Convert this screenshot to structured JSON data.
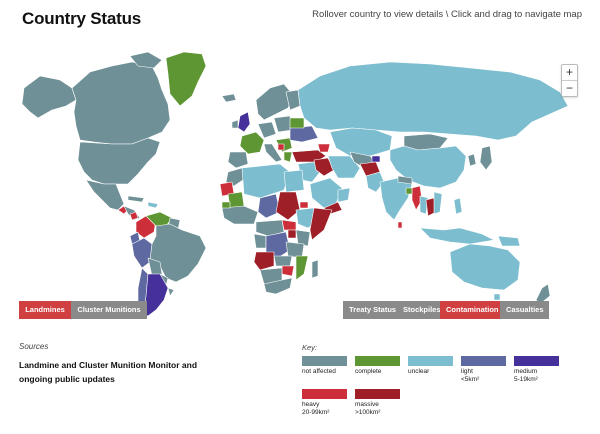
{
  "header": {
    "title": "Country Status",
    "hint": "Rollover country to view details \\ Click and drag to navigate map"
  },
  "zoom": {
    "in_label": "+",
    "out_label": "−"
  },
  "colors": {
    "not_affected": "#6f9096",
    "complete": "#5d9632",
    "unclear": "#7cbdcf",
    "light": "#5e69a1",
    "medium": "#46309a",
    "heavy": "#cc2f3a",
    "massive": "#9e1f27",
    "tab_active": "#d04040",
    "tab_inactive": "#8a8a8a"
  },
  "left_tabs": [
    {
      "label": "Landmines",
      "active": true
    },
    {
      "label": "Cluster Munitions",
      "active": false
    }
  ],
  "right_tabs": [
    {
      "label": "Treaty Status",
      "active": false
    },
    {
      "label": "Stockpiles",
      "active": false
    },
    {
      "label": "Contamination",
      "active": true
    },
    {
      "label": "Casualties",
      "active": false
    }
  ],
  "sources": {
    "label": "Sources",
    "text": "Landmine and Cluster Munition Monitor and ongoing public updates"
  },
  "key": {
    "label": "Key:",
    "items": [
      {
        "line1": "not affected",
        "line2": "",
        "color": "#6f9096"
      },
      {
        "line1": "complete",
        "line2": "",
        "color": "#5d9632"
      },
      {
        "line1": "unclear",
        "line2": "",
        "color": "#7cbdcf"
      },
      {
        "line1": "light",
        "line2": "<5km²",
        "color": "#5e69a1"
      },
      {
        "line1": "medium",
        "line2": "5-19km²",
        "color": "#46309a"
      },
      {
        "line1": "heavy",
        "line2": "20-99km²",
        "color": "#cc2f3a"
      },
      {
        "line1": "massive",
        "line2": ">100km²",
        "color": "#9e1f27"
      }
    ]
  }
}
